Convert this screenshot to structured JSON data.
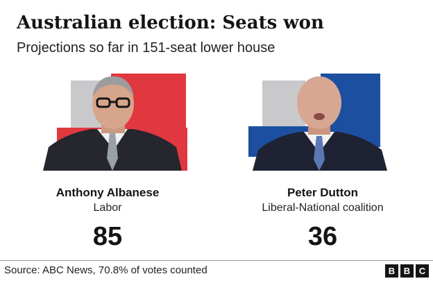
{
  "title": "Australian election: Seats won",
  "subtitle": "Projections so far in 151-seat lower house",
  "candidates": [
    {
      "name": "Anthony Albanese",
      "party": "Labor",
      "seats": "85",
      "color": "#e0383e"
    },
    {
      "name": "Peter Dutton",
      "party": "Liberal-National coalition",
      "seats": "36",
      "color": "#1c4fa0"
    }
  ],
  "accent_grey": "#c9c9cc",
  "source": "Source: ABC News, 70.8% of votes counted",
  "logo": [
    "B",
    "B",
    "C"
  ]
}
